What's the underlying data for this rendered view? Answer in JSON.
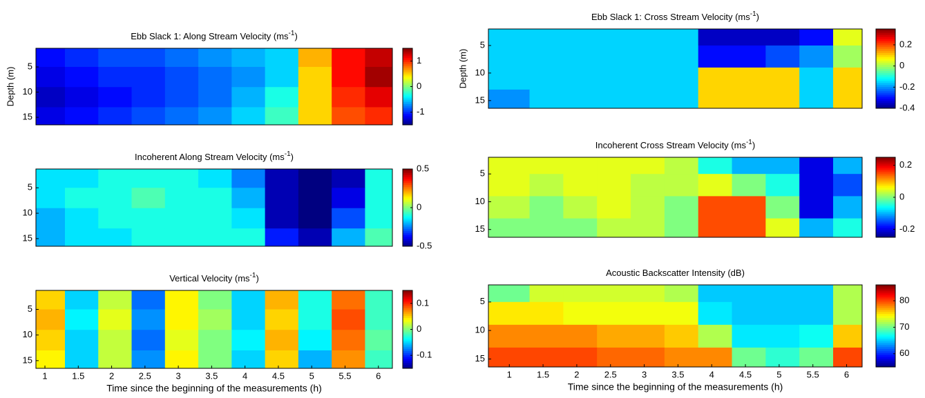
{
  "chart_data": [
    {
      "type": "heatmap",
      "colormap": "jet",
      "title": [
        "Ebb Slack 1: Along Stream Velocity (ms",
        "-1",
        ")"
      ],
      "ylabel": "Depth (m)",
      "xlim": [
        0.865,
        6.21
      ],
      "ylim": [
        1.3,
        16.5
      ],
      "yticks": [
        5,
        10,
        15
      ],
      "clim": [
        -1.5,
        1.5
      ],
      "cticks": [
        1,
        0,
        -1
      ],
      "xbins": [
        0.865,
        1.3,
        1.8,
        2.3,
        2.8,
        3.3,
        3.8,
        4.3,
        4.8,
        5.3,
        5.8,
        6.21
      ],
      "ybins": [
        1.3,
        5,
        9,
        13,
        16.5
      ],
      "z": [
        [
          -1.1,
          -1.0,
          -0.9,
          -0.9,
          -0.8,
          -0.7,
          -0.6,
          -0.5,
          0.6,
          1.1,
          1.3
        ],
        [
          -1.2,
          -1.1,
          -1.0,
          -1.0,
          -0.9,
          -0.8,
          -0.7,
          -0.5,
          0.5,
          1.1,
          1.4
        ],
        [
          -1.3,
          -1.2,
          -1.1,
          -1.0,
          -0.9,
          -0.8,
          -0.6,
          -0.3,
          0.5,
          1.0,
          1.2
        ],
        [
          -1.2,
          -1.1,
          -1.0,
          -0.9,
          -0.8,
          -0.7,
          -0.5,
          -0.2,
          0.5,
          0.9,
          1.0
        ]
      ]
    },
    {
      "type": "heatmap",
      "colormap": "jet",
      "title": [
        "Incoherent Along Stream Velocity (ms",
        "-1",
        ")"
      ],
      "xlim": [
        0.865,
        6.21
      ],
      "ylim": [
        1.3,
        16.5
      ],
      "yticks": [
        5,
        10,
        15
      ],
      "clim": [
        -0.5,
        0.5
      ],
      "cticks": [
        0.5,
        0,
        -0.5
      ],
      "xbins": [
        0.865,
        1.3,
        1.8,
        2.3,
        2.8,
        3.3,
        3.8,
        4.3,
        4.8,
        5.3,
        5.8,
        6.21
      ],
      "ybins": [
        1.3,
        5,
        9,
        13,
        16.5
      ],
      "z": [
        [
          -0.15,
          -0.15,
          -0.1,
          -0.1,
          -0.1,
          -0.15,
          -0.25,
          -0.45,
          -0.5,
          -0.45,
          -0.1
        ],
        [
          -0.15,
          -0.1,
          -0.1,
          -0.05,
          -0.1,
          -0.1,
          -0.2,
          -0.45,
          -0.5,
          -0.4,
          -0.1
        ],
        [
          -0.2,
          -0.15,
          -0.1,
          -0.1,
          -0.1,
          -0.1,
          -0.15,
          -0.45,
          -0.5,
          -0.3,
          -0.1
        ],
        [
          -0.2,
          -0.15,
          -0.15,
          -0.1,
          -0.1,
          -0.1,
          -0.1,
          -0.35,
          -0.45,
          -0.2,
          -0.05
        ]
      ]
    },
    {
      "type": "heatmap",
      "colormap": "jet",
      "title": [
        "Vertical Velocity (ms",
        "-1",
        ")"
      ],
      "xlabel": "Time since the beginning of the measurements (h)",
      "xlim": [
        0.865,
        6.21
      ],
      "xticks": [
        1,
        1.5,
        2,
        2.5,
        3,
        3.5,
        4,
        4.5,
        5,
        5.5,
        6
      ],
      "ylim": [
        1.3,
        16.5
      ],
      "yticks": [
        5,
        10,
        15
      ],
      "clim": [
        -0.15,
        0.15
      ],
      "cticks": [
        0.1,
        0,
        -0.1
      ],
      "xbins": [
        0.865,
        1.3,
        1.8,
        2.3,
        2.8,
        3.3,
        3.8,
        4.3,
        4.8,
        5.3,
        5.8,
        6.21
      ],
      "ybins": [
        1.3,
        5,
        9,
        13,
        16.5
      ],
      "z": [
        [
          0.05,
          -0.05,
          0.02,
          -0.08,
          0.04,
          0.0,
          -0.05,
          0.06,
          -0.03,
          0.08,
          -0.02
        ],
        [
          0.06,
          -0.04,
          0.03,
          -0.07,
          0.04,
          0.01,
          -0.05,
          0.05,
          -0.03,
          0.09,
          -0.02
        ],
        [
          0.05,
          -0.05,
          0.02,
          -0.08,
          0.03,
          0.0,
          -0.04,
          0.06,
          -0.04,
          0.08,
          -0.01
        ],
        [
          0.04,
          -0.05,
          0.02,
          -0.07,
          0.04,
          0.0,
          -0.05,
          0.05,
          -0.06,
          0.07,
          -0.02
        ]
      ]
    },
    {
      "type": "heatmap",
      "colormap": "jet",
      "title": [
        "Ebb Slack 1: Cross Stream Velocity (ms",
        "-1",
        ")"
      ],
      "ylabel": "Depth (m)",
      "xlim": [
        0.69,
        6.23
      ],
      "ylim": [
        2,
        16.4
      ],
      "yticks": [
        5,
        10,
        15
      ],
      "clim": [
        -0.4,
        0.35
      ],
      "cticks": [
        0.2,
        0,
        -0.2,
        -0.4
      ],
      "xbins": [
        0.69,
        1.3,
        1.8,
        2.3,
        2.8,
        3.3,
        3.8,
        4.3,
        4.8,
        5.3,
        5.8,
        6.23
      ],
      "ybins": [
        2,
        5,
        9,
        13,
        16.4
      ],
      "z": [
        [
          -0.15,
          -0.15,
          -0.15,
          -0.15,
          -0.15,
          -0.15,
          -0.35,
          -0.35,
          -0.35,
          -0.3,
          0.05
        ],
        [
          -0.15,
          -0.15,
          -0.15,
          -0.15,
          -0.15,
          -0.15,
          -0.3,
          -0.3,
          -0.25,
          -0.2,
          0.0
        ],
        [
          -0.15,
          -0.15,
          -0.15,
          -0.15,
          -0.15,
          -0.15,
          0.1,
          0.1,
          0.1,
          -0.15,
          0.1
        ],
        [
          -0.2,
          -0.15,
          -0.15,
          -0.15,
          -0.15,
          -0.15,
          0.1,
          0.1,
          0.1,
          -0.15,
          0.1
        ]
      ]
    },
    {
      "type": "heatmap",
      "colormap": "jet",
      "title": [
        "Incoherent Cross Stream Velocity (ms",
        "-1",
        ")"
      ],
      "xlim": [
        0.69,
        6.23
      ],
      "ylim": [
        2,
        16.4
      ],
      "yticks": [
        5,
        10,
        15
      ],
      "clim": [
        -0.25,
        0.25
      ],
      "cticks": [
        0.2,
        0,
        -0.2
      ],
      "xbins": [
        0.69,
        1.3,
        1.8,
        2.3,
        2.8,
        3.3,
        3.8,
        4.3,
        4.8,
        5.3,
        5.8,
        6.23
      ],
      "ybins": [
        2,
        5,
        9,
        13,
        16.4
      ],
      "z": [
        [
          0.05,
          0.05,
          0.05,
          0.05,
          0.05,
          0.03,
          -0.05,
          -0.1,
          -0.1,
          -0.2,
          -0.1
        ],
        [
          0.05,
          0.03,
          0.05,
          0.05,
          0.03,
          0.03,
          0.05,
          0.0,
          -0.05,
          -0.2,
          -0.15
        ],
        [
          0.03,
          0.0,
          0.03,
          0.05,
          0.03,
          0.0,
          0.15,
          0.15,
          0.0,
          -0.2,
          -0.1
        ],
        [
          0.0,
          0.0,
          0.0,
          0.03,
          0.03,
          0.0,
          0.15,
          0.15,
          0.05,
          -0.1,
          -0.05
        ]
      ]
    },
    {
      "type": "heatmap",
      "colormap": "jet",
      "title": [
        "Acoustic Backscatter Intensity (dB)"
      ],
      "xlabel": "Time since the beginning of the measurements (h)",
      "xlim": [
        0.69,
        6.23
      ],
      "xticks": [
        1,
        1.5,
        2,
        2.5,
        3,
        3.5,
        4,
        4.5,
        5,
        5.5,
        6
      ],
      "ylim": [
        2,
        16.4
      ],
      "yticks": [
        5,
        10,
        15
      ],
      "clim": [
        55,
        86
      ],
      "cticks": [
        80,
        70,
        60
      ],
      "xbins": [
        0.69,
        1.3,
        1.8,
        2.3,
        2.8,
        3.3,
        3.8,
        4.3,
        4.8,
        5.3,
        5.8,
        6.23
      ],
      "ybins": [
        2,
        5,
        9,
        13,
        16.4
      ],
      "z": [
        [
          70,
          73,
          73,
          73,
          73,
          72,
          65,
          65,
          65,
          65,
          72
        ],
        [
          75,
          75,
          74,
          74,
          74,
          74,
          66,
          65,
          65,
          65,
          72
        ],
        [
          78,
          78,
          78,
          77,
          77,
          76,
          72,
          66,
          66,
          67,
          76
        ],
        [
          80,
          80,
          80,
          79,
          79,
          78,
          78,
          70,
          68,
          70,
          80
        ]
      ]
    }
  ]
}
